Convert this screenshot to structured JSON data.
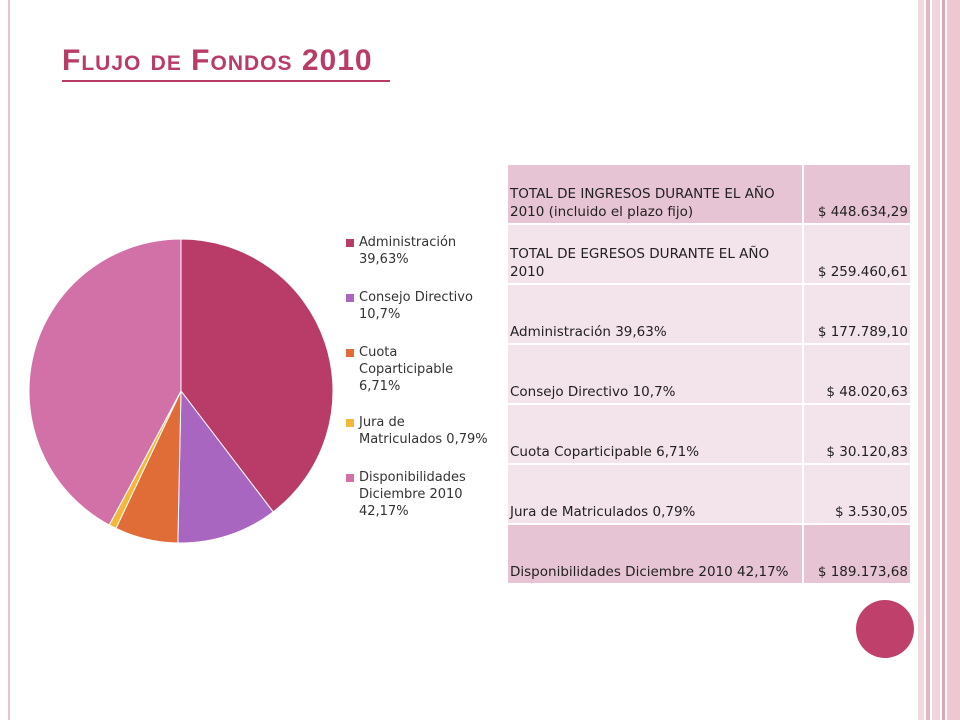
{
  "slide": {
    "title": "Flujo de Fondos 2010"
  },
  "colors": {
    "accent": "#b83b68",
    "table_dark": "#e6c4d3",
    "table_light": "#f3e3ea"
  },
  "chart_data": {
    "type": "pie",
    "title": "",
    "slices": [
      {
        "label_line1": "Administración",
        "label_line2": "39,63%",
        "value": 39.63,
        "color": "#b83b68"
      },
      {
        "label_line1": "Consejo Directivo",
        "label_line2": "10,7%",
        "value": 10.7,
        "color": "#a966c0"
      },
      {
        "label_line1": "Cuota",
        "label_line2": "Coparticipable",
        "label_line3": "6,71%",
        "value": 6.71,
        "color": "#e06c38"
      },
      {
        "label_line1": "Jura de",
        "label_line2": "Matriculados 0,79%",
        "value": 0.79,
        "color": "#f3b73a"
      },
      {
        "label_line1": "Disponibilidades",
        "label_line2": "Diciembre 2010",
        "label_line3": "42,17%",
        "value": 42.17,
        "color": "#d270a8"
      }
    ],
    "legend_position": "right"
  },
  "table": {
    "rows": [
      {
        "label": "TOTAL DE INGRESOS DURANTE EL AÑO 2010 (incluido el plazo fijo)",
        "value": "$ 448.634,29"
      },
      {
        "label": "TOTAL DE EGRESOS DURANTE EL AÑO 2010",
        "value": "$ 259.460,61"
      },
      {
        "label": "Administración 39,63%",
        "value": "$ 177.789,10"
      },
      {
        "label": "Consejo Directivo 10,7%",
        "value": "$ 48.020,63"
      },
      {
        "label": "Cuota Coparticipable 6,71%",
        "value": "$ 30.120,83"
      },
      {
        "label": "Jura de Matriculados 0,79%",
        "value": "$ 3.530,05"
      },
      {
        "label": "Disponibilidades Diciembre 2010 42,17%",
        "value": "$ 189.173,68"
      }
    ]
  }
}
